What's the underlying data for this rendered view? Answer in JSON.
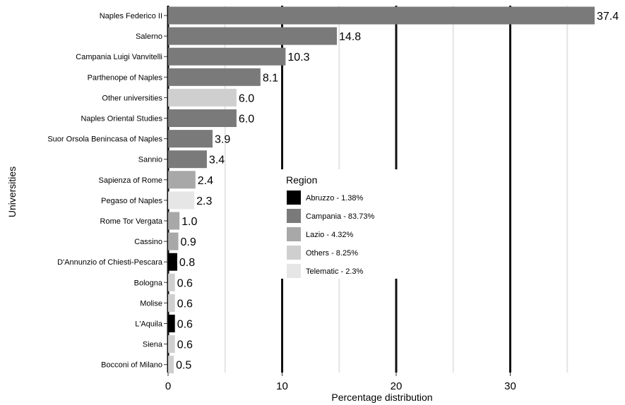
{
  "chart_data": {
    "type": "bar",
    "orientation": "horizontal",
    "xlabel": "Percentage distribution",
    "ylabel": "Universities",
    "xlim": [
      0,
      37.4
    ],
    "xticks": [
      0,
      10,
      20,
      30
    ],
    "grid": true,
    "legend_placement": "center-right",
    "legend_title": "Region",
    "legend": [
      {
        "key": "abruzzo",
        "label": "Abruzzo - 1.38%",
        "color": "#000000"
      },
      {
        "key": "campania",
        "label": "Campania - 83.73%",
        "color": "#7a7a7a"
      },
      {
        "key": "lazio",
        "label": "Lazio - 4.32%",
        "color": "#a8a8a8"
      },
      {
        "key": "others",
        "label": "Others - 8.25%",
        "color": "#cfcfcf"
      },
      {
        "key": "telematic",
        "label": "Telematic - 2.3%",
        "color": "#e6e6e6"
      }
    ],
    "categories": [
      "Naples Federico II",
      "Salerno",
      "Campania Luigi Vanvitelli",
      "Parthenope of Naples",
      "Other universities",
      "Naples Oriental Studies",
      "Suor Orsola Benincasa of Naples",
      "Sannio",
      "Sapienza of Rome",
      "Pegaso of Naples",
      "Rome Tor Vergata",
      "Cassino",
      "D'Annunzio of Chiesti-Pescara",
      "Bologna",
      "Molise",
      "L'Aquila",
      "Siena",
      "Bocconi of Milano"
    ],
    "values": [
      37.4,
      14.8,
      10.3,
      8.1,
      6.0,
      6.0,
      3.9,
      3.4,
      2.4,
      2.3,
      1.0,
      0.9,
      0.8,
      0.6,
      0.6,
      0.6,
      0.6,
      0.5
    ],
    "value_labels": [
      "37.4",
      "14.8",
      "10.3",
      "8.1",
      "6.0",
      "6.0",
      "3.9",
      "3.4",
      "2.4",
      "2.3",
      "1.0",
      "0.9",
      "0.8",
      "0.6",
      "0.6",
      "0.6",
      "0.6",
      "0.5"
    ],
    "regions": [
      "campania",
      "campania",
      "campania",
      "campania",
      "others",
      "campania",
      "campania",
      "campania",
      "lazio",
      "telematic",
      "lazio",
      "lazio",
      "abruzzo",
      "others",
      "others",
      "abruzzo",
      "others",
      "others"
    ]
  }
}
